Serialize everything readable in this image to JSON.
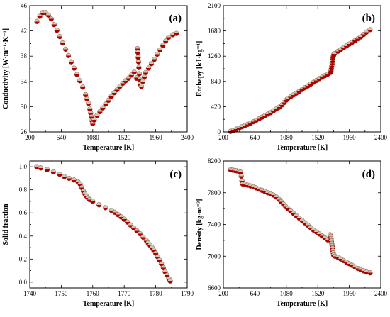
{
  "chart_data": [
    {
      "type": "scatter",
      "label": "(a)",
      "xlabel": "Temperature [K]",
      "ylabel": "Conductivity [W·m⁻¹·K⁻¹]",
      "xlim": [
        200,
        2400
      ],
      "ylim": [
        26,
        46
      ],
      "xticks": [
        "200",
        "640",
        "1080",
        "1520",
        "1960",
        "2400"
      ],
      "yticks": [
        "26",
        "30",
        "34",
        "38",
        "42",
        "46"
      ],
      "marker_colors": {
        "top": "#c8c8b4",
        "bottom": "#b00000"
      },
      "series": [
        {
          "x": [
            300,
            340,
            380,
            420,
            460,
            500,
            540,
            580,
            620,
            660,
            700,
            740,
            780,
            820,
            860,
            900,
            940,
            980,
            1000,
            1020,
            1040,
            1050,
            1060,
            1070,
            1080,
            1100,
            1140,
            1180,
            1220,
            1260,
            1300,
            1340,
            1380,
            1420,
            1460,
            1500,
            1540,
            1580,
            1620,
            1660,
            1690,
            1700,
            1705,
            1710,
            1715,
            1720,
            1725,
            1730,
            1735,
            1740,
            1760,
            1780,
            1800,
            1820,
            1860,
            1900,
            1940,
            1980,
            2020,
            2060,
            2100,
            2140,
            2200,
            2250
          ],
          "y": [
            43.5,
            44.3,
            44.9,
            44.9,
            44.5,
            43.9,
            43.0,
            42.1,
            41.1,
            40.1,
            39.1,
            38.1,
            37.1,
            36.1,
            35.1,
            34.1,
            33.1,
            31.9,
            31.2,
            30.5,
            29.6,
            29.0,
            28.4,
            27.8,
            27.3,
            27.9,
            28.6,
            29.2,
            29.8,
            30.4,
            31.0,
            31.6,
            32.2,
            32.7,
            33.2,
            33.7,
            34.1,
            34.5,
            35.0,
            35.5,
            34.5,
            34.6,
            39.2,
            38.6,
            37.8,
            37.1,
            36.2,
            35.2,
            34.3,
            33.6,
            33.2,
            34.0,
            34.7,
            35.4,
            36.1,
            36.8,
            37.5,
            38.3,
            39.0,
            39.7,
            40.4,
            41.0,
            41.4,
            41.6
          ]
        }
      ]
    },
    {
      "type": "scatter",
      "label": "(b)",
      "xlabel": "Temperature [K]",
      "ylabel": "Enthapy [kJ·kg⁻¹]",
      "xlim": [
        200,
        2400
      ],
      "ylim": [
        0,
        2100
      ],
      "xticks": [
        "200",
        "640",
        "1080",
        "1520",
        "1960",
        "2400"
      ],
      "yticks": [
        "0",
        "420",
        "840",
        "1260",
        "1680",
        "2100"
      ],
      "marker_colors": {
        "top": "#c8c8b4",
        "bottom": "#b00000"
      },
      "series": [
        {
          "x": [
            300,
            340,
            380,
            420,
            460,
            500,
            540,
            580,
            620,
            660,
            700,
            740,
            780,
            820,
            860,
            900,
            940,
            980,
            1020,
            1050,
            1080,
            1100,
            1140,
            1180,
            1220,
            1260,
            1300,
            1340,
            1380,
            1420,
            1460,
            1500,
            1540,
            1580,
            1620,
            1660,
            1700,
            1705,
            1710,
            1715,
            1720,
            1725,
            1730,
            1735,
            1740,
            1745,
            1750,
            1800,
            1840,
            1880,
            1920,
            1960,
            2000,
            2040,
            2080,
            2120,
            2160,
            2200,
            2250
          ],
          "y": [
            10,
            25,
            45,
            65,
            85,
            105,
            125,
            145,
            170,
            195,
            220,
            245,
            270,
            295,
            320,
            350,
            380,
            410,
            450,
            490,
            530,
            555,
            585,
            615,
            645,
            675,
            705,
            735,
            765,
            795,
            825,
            855,
            885,
            910,
            935,
            960,
            990,
            1020,
            1060,
            1100,
            1140,
            1180,
            1220,
            1250,
            1270,
            1290,
            1300,
            1340,
            1370,
            1400,
            1430,
            1460,
            1490,
            1520,
            1550,
            1580,
            1620,
            1660,
            1700
          ]
        }
      ]
    },
    {
      "type": "scatter",
      "label": "(c)",
      "xlabel": "Temperature [K]",
      "ylabel": "Solid fraction",
      "xlim": [
        1740,
        1790
      ],
      "ylim": [
        -0.05,
        1.05
      ],
      "xticks": [
        "1740",
        "1750",
        "1760",
        "1770",
        "1780",
        "1790"
      ],
      "yticks": [
        "0.0",
        "0.2",
        "0.4",
        "0.6",
        "0.8",
        "1.0"
      ],
      "marker_colors": {
        "top": "#c8c8b4",
        "bottom": "#b00000"
      },
      "series": [
        {
          "x": [
            1742.2,
            1743.5,
            1745.5,
            1747.5,
            1749.5,
            1751.0,
            1752.5,
            1754.0,
            1755.3,
            1756.0,
            1756.5,
            1757.0,
            1757.5,
            1758.0,
            1758.5,
            1759.0,
            1760.0,
            1762.0,
            1764.0,
            1766.0,
            1767.0,
            1768.0,
            1769.0,
            1770.0,
            1771.0,
            1772.0,
            1773.0,
            1774.0,
            1775.0,
            1776.0,
            1777.0,
            1777.6,
            1778.2,
            1778.8,
            1779.4,
            1780.0,
            1780.6,
            1781.2,
            1781.8,
            1782.4,
            1783.0,
            1783.6,
            1784.2,
            1784.6
          ],
          "y": [
            1.0,
            0.99,
            0.975,
            0.955,
            0.935,
            0.915,
            0.9,
            0.885,
            0.87,
            0.85,
            0.82,
            0.79,
            0.765,
            0.745,
            0.73,
            0.715,
            0.7,
            0.67,
            0.645,
            0.62,
            0.605,
            0.585,
            0.565,
            0.545,
            0.52,
            0.495,
            0.47,
            0.445,
            0.42,
            0.39,
            0.36,
            0.34,
            0.32,
            0.3,
            0.275,
            0.25,
            0.22,
            0.19,
            0.16,
            0.125,
            0.09,
            0.06,
            0.03,
            0.01
          ]
        }
      ]
    },
    {
      "type": "scatter",
      "label": "(d)",
      "xlabel": "Temperature [K]",
      "ylabel": "Density [kg·m⁻³]",
      "xlim": [
        200,
        2400
      ],
      "ylim": [
        6600,
        8200
      ],
      "xticks": [
        "200",
        "640",
        "1080",
        "1520",
        "1960",
        "2400"
      ],
      "yticks": [
        "6600",
        "7000",
        "7400",
        "7800",
        "8200"
      ],
      "marker_colors": {
        "top": "#c8c8b4",
        "bottom": "#b00000"
      },
      "series": [
        {
          "x": [
            300,
            330,
            360,
            390,
            420,
            440,
            450,
            460,
            470,
            500,
            540,
            580,
            620,
            660,
            700,
            740,
            780,
            820,
            860,
            900,
            940,
            980,
            1010,
            1040,
            1070,
            1100,
            1140,
            1180,
            1220,
            1260,
            1300,
            1340,
            1380,
            1420,
            1460,
            1500,
            1540,
            1580,
            1620,
            1660,
            1690,
            1700,
            1705,
            1710,
            1715,
            1720,
            1725,
            1730,
            1735,
            1740,
            1760,
            1800,
            1840,
            1880,
            1920,
            1960,
            2000,
            2040,
            2080,
            2120,
            2160,
            2200,
            2250
          ],
          "y": [
            8090,
            8085,
            8080,
            8075,
            8070,
            8060,
            8010,
            7950,
            7910,
            7905,
            7895,
            7885,
            7875,
            7860,
            7845,
            7830,
            7815,
            7800,
            7785,
            7770,
            7745,
            7715,
            7685,
            7655,
            7625,
            7600,
            7570,
            7540,
            7510,
            7480,
            7450,
            7420,
            7390,
            7360,
            7330,
            7305,
            7280,
            7255,
            7230,
            7205,
            7270,
            7250,
            7220,
            7190,
            7160,
            7130,
            7100,
            7070,
            7040,
            7015,
            7000,
            6985,
            6965,
            6945,
            6925,
            6905,
            6885,
            6865,
            6845,
            6830,
            6815,
            6800,
            6790
          ]
        }
      ]
    }
  ]
}
